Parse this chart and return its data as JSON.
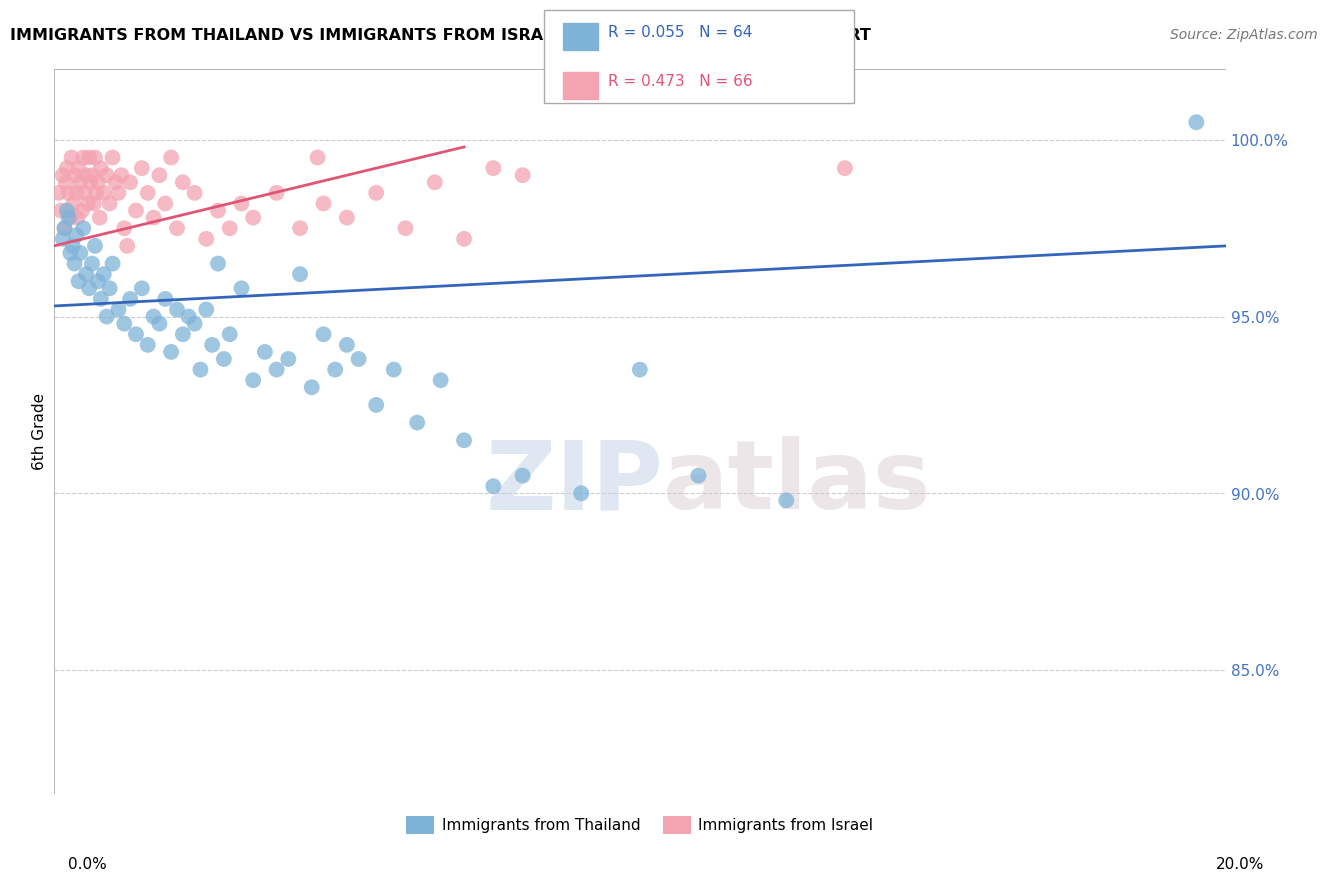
{
  "title": "IMMIGRANTS FROM THAILAND VS IMMIGRANTS FROM ISRAEL 6TH GRADE CORRELATION CHART",
  "source": "Source: ZipAtlas.com",
  "ylabel": "6th Grade",
  "ytick_values": [
    85.0,
    90.0,
    95.0,
    100.0
  ],
  "xmin": 0.0,
  "xmax": 20.0,
  "ymin": 81.5,
  "ymax": 102.0,
  "legend_blue_r": "R = 0.055",
  "legend_blue_n": "N = 64",
  "legend_pink_r": "R = 0.473",
  "legend_pink_n": "N = 66",
  "legend_label_blue": "Immigrants from Thailand",
  "legend_label_pink": "Immigrants from Israel",
  "blue_color": "#7EB3D8",
  "pink_color": "#F4A3B0",
  "blue_line_color": "#3366BB",
  "pink_line_color": "#E05575",
  "watermark_zip": "ZIP",
  "watermark_atlas": "atlas",
  "blue_line_x": [
    0.0,
    20.0
  ],
  "blue_line_y": [
    95.3,
    97.0
  ],
  "pink_line_x": [
    0.0,
    7.0
  ],
  "pink_line_y": [
    97.0,
    99.8
  ],
  "blue_scatter_x": [
    0.15,
    0.18,
    0.22,
    0.25,
    0.28,
    0.32,
    0.35,
    0.38,
    0.42,
    0.45,
    0.5,
    0.55,
    0.6,
    0.65,
    0.7,
    0.75,
    0.8,
    0.85,
    0.9,
    0.95,
    1.0,
    1.1,
    1.2,
    1.3,
    1.4,
    1.5,
    1.6,
    1.7,
    1.8,
    1.9,
    2.0,
    2.1,
    2.2,
    2.3,
    2.4,
    2.5,
    2.6,
    2.7,
    2.8,
    2.9,
    3.0,
    3.2,
    3.4,
    3.6,
    3.8,
    4.0,
    4.2,
    4.4,
    4.6,
    4.8,
    5.0,
    5.2,
    5.5,
    5.8,
    6.2,
    6.6,
    7.0,
    7.5,
    8.0,
    9.0,
    10.0,
    11.0,
    12.5,
    19.5
  ],
  "blue_scatter_y": [
    97.2,
    97.5,
    98.0,
    97.8,
    96.8,
    97.0,
    96.5,
    97.3,
    96.0,
    96.8,
    97.5,
    96.2,
    95.8,
    96.5,
    97.0,
    96.0,
    95.5,
    96.2,
    95.0,
    95.8,
    96.5,
    95.2,
    94.8,
    95.5,
    94.5,
    95.8,
    94.2,
    95.0,
    94.8,
    95.5,
    94.0,
    95.2,
    94.5,
    95.0,
    94.8,
    93.5,
    95.2,
    94.2,
    96.5,
    93.8,
    94.5,
    95.8,
    93.2,
    94.0,
    93.5,
    93.8,
    96.2,
    93.0,
    94.5,
    93.5,
    94.2,
    93.8,
    92.5,
    93.5,
    92.0,
    93.2,
    91.5,
    90.2,
    90.5,
    90.0,
    93.5,
    90.5,
    89.8,
    100.5
  ],
  "pink_scatter_x": [
    0.08,
    0.12,
    0.15,
    0.18,
    0.2,
    0.22,
    0.25,
    0.28,
    0.3,
    0.33,
    0.36,
    0.38,
    0.4,
    0.42,
    0.45,
    0.48,
    0.5,
    0.52,
    0.55,
    0.58,
    0.6,
    0.62,
    0.65,
    0.68,
    0.7,
    0.72,
    0.75,
    0.78,
    0.8,
    0.85,
    0.9,
    0.95,
    1.0,
    1.05,
    1.1,
    1.15,
    1.2,
    1.3,
    1.4,
    1.5,
    1.6,
    1.7,
    1.8,
    1.9,
    2.0,
    2.1,
    2.2,
    2.4,
    2.6,
    2.8,
    3.0,
    3.2,
    3.4,
    3.8,
    4.2,
    4.6,
    5.0,
    5.5,
    6.0,
    6.5,
    7.0,
    7.5,
    8.0,
    13.5,
    1.25,
    4.5
  ],
  "pink_scatter_y": [
    98.5,
    98.0,
    99.0,
    97.5,
    98.8,
    99.2,
    98.5,
    97.8,
    99.5,
    98.2,
    99.0,
    98.5,
    97.8,
    99.2,
    98.8,
    98.0,
    99.5,
    98.5,
    99.0,
    98.2,
    99.5,
    98.8,
    99.0,
    98.2,
    99.5,
    98.5,
    98.8,
    97.8,
    99.2,
    98.5,
    99.0,
    98.2,
    99.5,
    98.8,
    98.5,
    99.0,
    97.5,
    98.8,
    98.0,
    99.2,
    98.5,
    97.8,
    99.0,
    98.2,
    99.5,
    97.5,
    98.8,
    98.5,
    97.2,
    98.0,
    97.5,
    98.2,
    97.8,
    98.5,
    97.5,
    98.2,
    97.8,
    98.5,
    97.5,
    98.8,
    97.2,
    99.2,
    99.0,
    99.2,
    97.0,
    99.5
  ]
}
